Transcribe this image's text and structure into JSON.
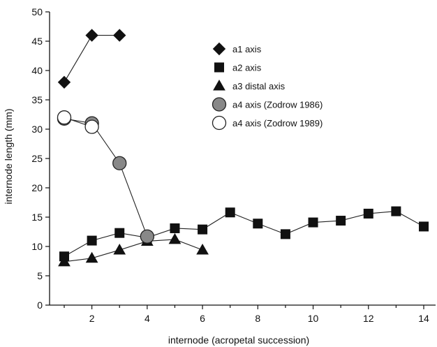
{
  "chart_data": {
    "type": "scatter",
    "title": "",
    "xlabel": "internode (acropetal succession)",
    "ylabel": "internode length (mm)",
    "xlim": [
      0.5,
      15
    ],
    "ylim": [
      0,
      50
    ],
    "xticks": [
      2,
      4,
      6,
      8,
      10,
      12,
      14
    ],
    "yticks": [
      0,
      5,
      10,
      15,
      20,
      25,
      30,
      35,
      40,
      45,
      50
    ],
    "grid": false,
    "legend_position": "top-right",
    "series": [
      {
        "name": "a1 axis",
        "marker": "diamond",
        "fill": "#111111",
        "x": [
          1,
          2,
          3
        ],
        "y": [
          38,
          46,
          46
        ]
      },
      {
        "name": "a2 axis",
        "marker": "square",
        "fill": "#111111",
        "x": [
          1,
          2,
          3,
          4,
          5,
          6,
          7,
          8,
          9,
          10,
          11,
          12,
          13,
          14
        ],
        "y": [
          8.3,
          11,
          12.3,
          11.5,
          13.1,
          12.9,
          15.8,
          13.9,
          12.1,
          14.1,
          14.4,
          15.6,
          16,
          13.4
        ]
      },
      {
        "name": "a3 distal axis",
        "marker": "triangle",
        "fill": "#111111",
        "x": [
          1,
          2,
          3,
          4,
          5,
          6
        ],
        "y": [
          7.4,
          8,
          9.4,
          10.9,
          11.2,
          9.4
        ]
      },
      {
        "name": "a4 axis (Zodrow 1986)",
        "marker": "circle",
        "fill": "#888888",
        "x": [
          1,
          2,
          3,
          4
        ],
        "y": [
          31.8,
          31,
          24.2,
          11.7
        ]
      },
      {
        "name": "a4 axis (Zodrow 1989)",
        "marker": "circle",
        "fill": "#ffffff",
        "x": [
          1,
          2
        ],
        "y": [
          32,
          30.4
        ]
      }
    ]
  }
}
